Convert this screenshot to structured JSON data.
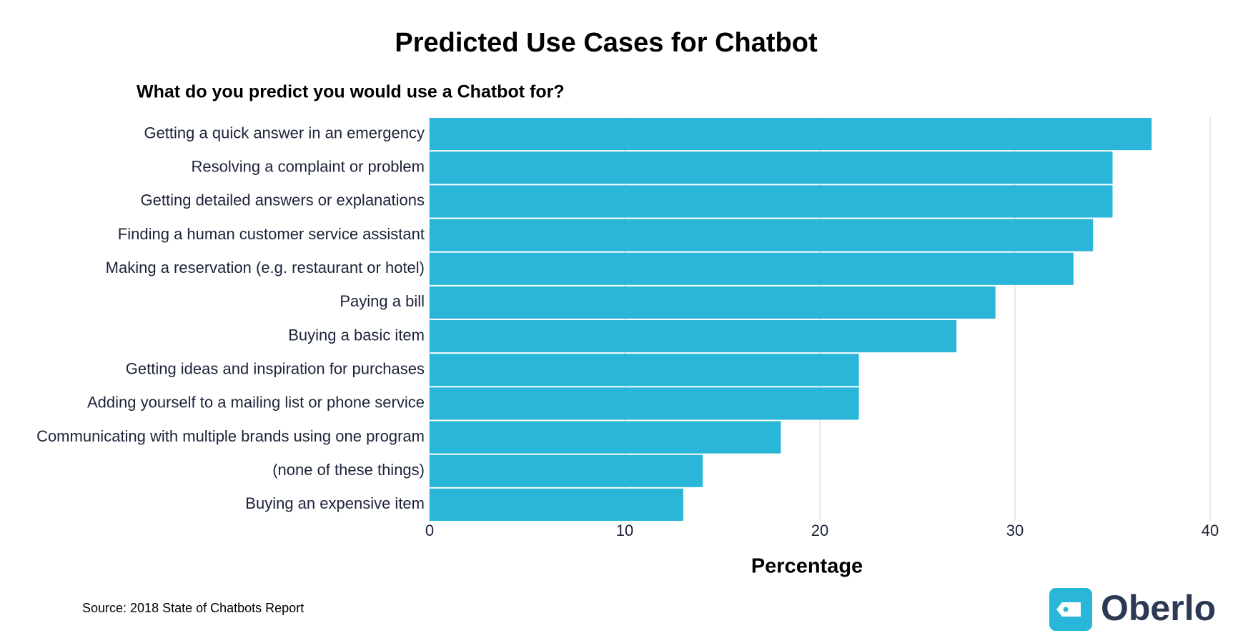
{
  "chart_data": {
    "type": "bar",
    "orientation": "horizontal",
    "title": "Predicted Use Cases for Chatbot",
    "subtitle": "What do you predict you would use a Chatbot for?",
    "categories": [
      "Getting a quick answer in an emergency",
      "Resolving a complaint or problem",
      "Getting detailed answers or explanations",
      "Finding a human customer service assistant",
      "Making a reservation (e.g. restaurant or hotel)",
      "Paying a bill",
      "Buying a basic item",
      "Getting ideas and inspiration for purchases",
      "Adding yourself to a mailing list or phone service",
      "Communicating with multiple brands using one program",
      "(none of these things)",
      "Buying an expensive item"
    ],
    "values": [
      37,
      35,
      35,
      34,
      33,
      29,
      27,
      22,
      22,
      18,
      14,
      13
    ],
    "color": "#29b6d8",
    "xlabel": "Percentage",
    "xlim": [
      0,
      40
    ],
    "xticks": [
      0,
      10,
      20,
      30,
      40
    ],
    "grid": true,
    "source": "Source: 2018 State of Chatbots Report",
    "logo": "Oberlo"
  }
}
